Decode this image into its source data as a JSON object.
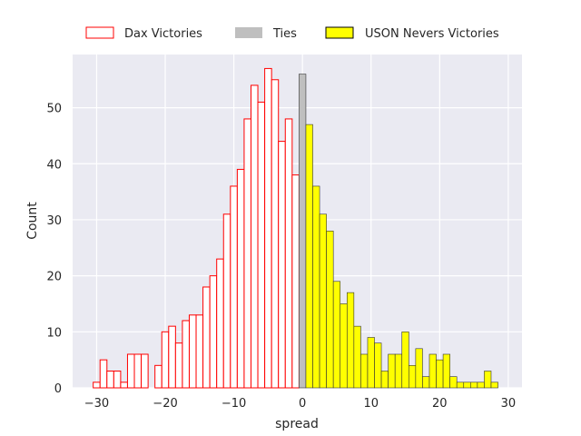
{
  "chart_data": {
    "type": "bar",
    "subtype": "histogram",
    "xlabel": "spread",
    "ylabel": "Count",
    "xlim": [
      -33.5,
      32
    ],
    "ylim": [
      0,
      59.5
    ],
    "x_ticks": [
      -30,
      -20,
      -10,
      0,
      10,
      20,
      30
    ],
    "y_ticks": [
      0,
      10,
      20,
      30,
      40,
      50
    ],
    "grid": true,
    "background": "#eaeaf2",
    "legend_position": "top",
    "bin_width": 1,
    "series": [
      {
        "name": "Dax Victories",
        "style": "outline",
        "edge_color": "#ff0000",
        "fill_color": "#ffffff",
        "bins": [
          {
            "x": -30,
            "value": 1
          },
          {
            "x": -29,
            "value": 5
          },
          {
            "x": -28,
            "value": 3
          },
          {
            "x": -27,
            "value": 3
          },
          {
            "x": -26,
            "value": 1
          },
          {
            "x": -25,
            "value": 6
          },
          {
            "x": -24,
            "value": 6
          },
          {
            "x": -23,
            "value": 6
          },
          {
            "x": -22,
            "value": 0
          },
          {
            "x": -21,
            "value": 4
          },
          {
            "x": -20,
            "value": 10
          },
          {
            "x": -19,
            "value": 11
          },
          {
            "x": -18,
            "value": 8
          },
          {
            "x": -17,
            "value": 12
          },
          {
            "x": -16,
            "value": 13
          },
          {
            "x": -15,
            "value": 13
          },
          {
            "x": -14,
            "value": 18
          },
          {
            "x": -13,
            "value": 20
          },
          {
            "x": -12,
            "value": 23
          },
          {
            "x": -11,
            "value": 31
          },
          {
            "x": -10,
            "value": 36
          },
          {
            "x": -9,
            "value": 39
          },
          {
            "x": -8,
            "value": 48
          },
          {
            "x": -7,
            "value": 54
          },
          {
            "x": -6,
            "value": 51
          },
          {
            "x": -5,
            "value": 57
          },
          {
            "x": -4,
            "value": 55
          },
          {
            "x": -3,
            "value": 44
          },
          {
            "x": -2,
            "value": 48
          },
          {
            "x": -1,
            "value": 38
          }
        ]
      },
      {
        "name": "Ties",
        "style": "filled",
        "edge_color": "#333333",
        "fill_color": "#bfbfbf",
        "bins": [
          {
            "x": 0,
            "value": 56
          }
        ]
      },
      {
        "name": "USON Nevers Victories",
        "style": "filled",
        "edge_color": "#333333",
        "fill_color": "#ffff00",
        "bins": [
          {
            "x": 1,
            "value": 47
          },
          {
            "x": 2,
            "value": 36
          },
          {
            "x": 3,
            "value": 31
          },
          {
            "x": 4,
            "value": 28
          },
          {
            "x": 5,
            "value": 19
          },
          {
            "x": 6,
            "value": 15
          },
          {
            "x": 7,
            "value": 17
          },
          {
            "x": 8,
            "value": 11
          },
          {
            "x": 9,
            "value": 6
          },
          {
            "x": 10,
            "value": 9
          },
          {
            "x": 11,
            "value": 8
          },
          {
            "x": 12,
            "value": 3
          },
          {
            "x": 13,
            "value": 6
          },
          {
            "x": 14,
            "value": 6
          },
          {
            "x": 15,
            "value": 10
          },
          {
            "x": 16,
            "value": 4
          },
          {
            "x": 17,
            "value": 7
          },
          {
            "x": 18,
            "value": 2
          },
          {
            "x": 19,
            "value": 6
          },
          {
            "x": 20,
            "value": 5
          },
          {
            "x": 21,
            "value": 6
          },
          {
            "x": 22,
            "value": 2
          },
          {
            "x": 23,
            "value": 1
          },
          {
            "x": 24,
            "value": 1
          },
          {
            "x": 25,
            "value": 1
          },
          {
            "x": 26,
            "value": 1
          },
          {
            "x": 27,
            "value": 3
          },
          {
            "x": 28,
            "value": 1
          }
        ]
      }
    ]
  }
}
